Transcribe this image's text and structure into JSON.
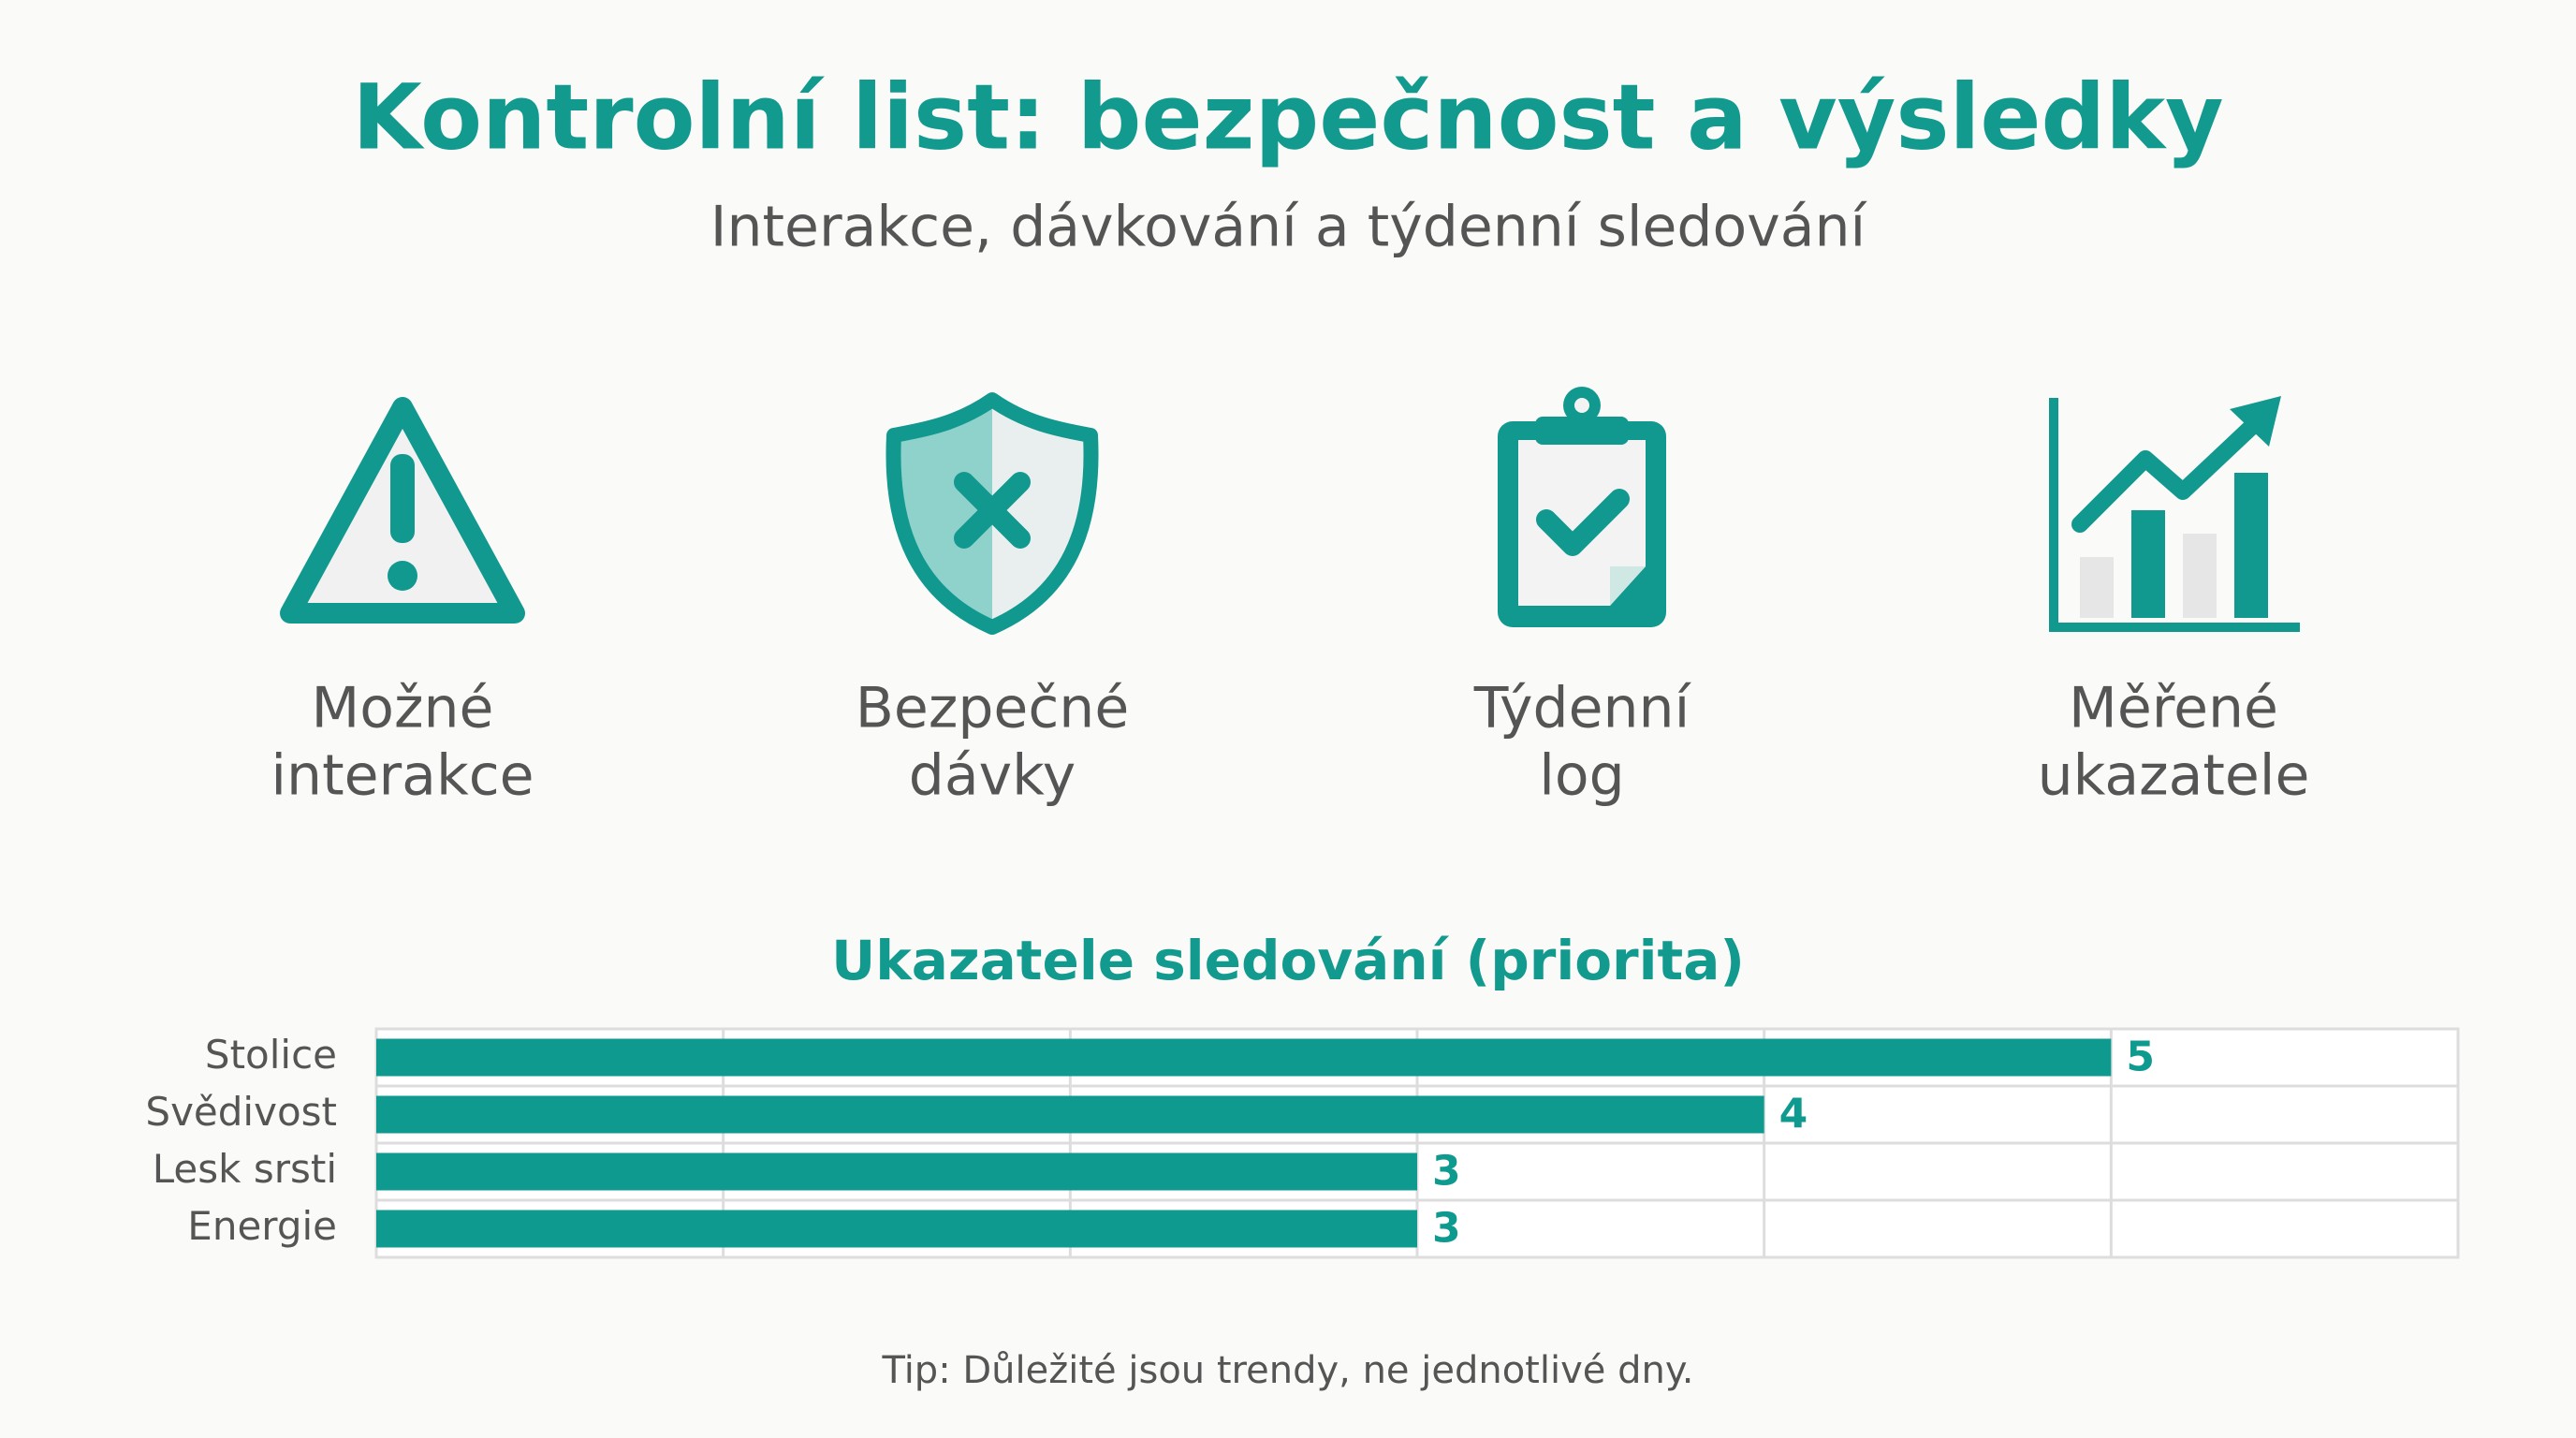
{
  "header": {
    "title": "Kontrolní list: bezpečnost a výsledky",
    "subtitle": "Interakce, dávkování a týdenní sledování"
  },
  "features": [
    {
      "label": [
        "Možné",
        "interakce"
      ]
    },
    {
      "label": [
        "Bezpečné",
        "dávky"
      ]
    },
    {
      "label": [
        "Týdenní",
        "log"
      ]
    },
    {
      "label": [
        "Měřené",
        "ukazatele"
      ]
    }
  ],
  "chart_data": {
    "type": "bar",
    "orientation": "horizontal",
    "title": "Ukazatele sledování (priorita)",
    "categories": [
      "Stolice",
      "Svědivost",
      "Lesk srsti",
      "Energie"
    ],
    "values": [
      5,
      4,
      3,
      3
    ],
    "color": "#0f9a90",
    "xlim": [
      0,
      6
    ],
    "xticks": [
      0,
      1,
      2,
      3,
      4,
      5,
      6
    ],
    "grid": true
  },
  "footer": {
    "tip": "Tip: Důležité jsou trendy, ne jednotlivé dny."
  }
}
